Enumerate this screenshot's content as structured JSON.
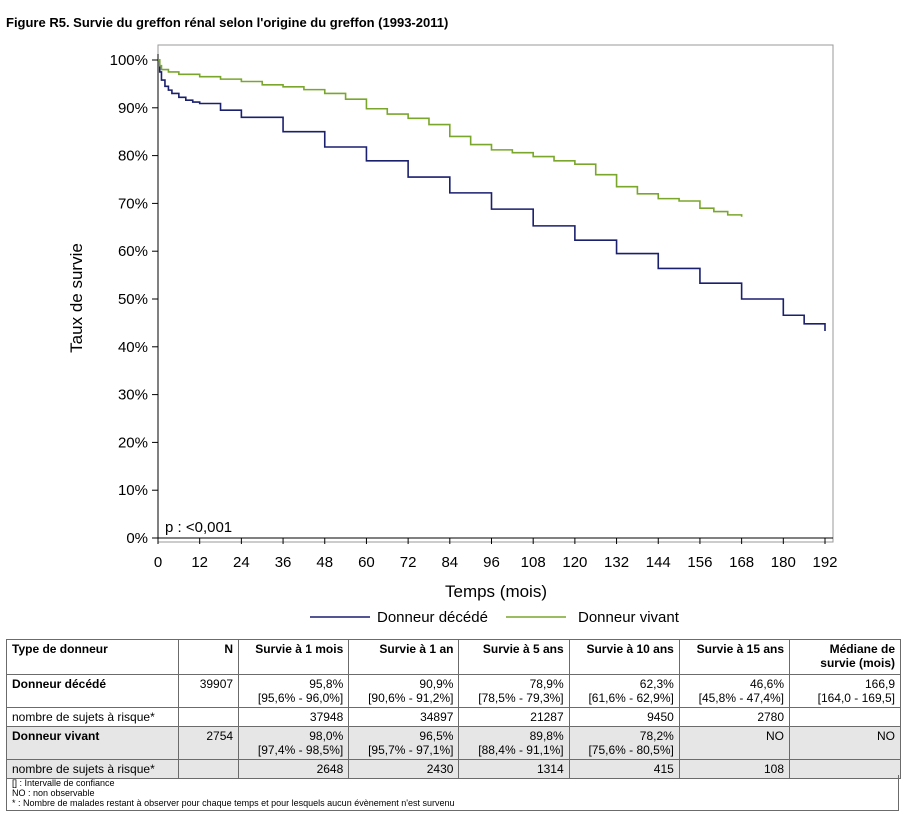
{
  "figure_title": "Figure R5. Survie du greffon rénal selon l'origine du greffon (1993-2011)",
  "chart_data": {
    "type": "line",
    "ylabel": "Taux de survie",
    "xlabel": "Temps (mois)",
    "annotation": "p : <0,001",
    "xlim": [
      0,
      192
    ],
    "ylim": [
      0,
      100
    ],
    "x_ticks": [
      "0",
      "12",
      "24",
      "36",
      "48",
      "60",
      "72",
      "84",
      "96",
      "108",
      "120",
      "132",
      "144",
      "156",
      "168",
      "180",
      "192"
    ],
    "y_ticks": [
      "0%",
      "10%",
      "20%",
      "30%",
      "40%",
      "50%",
      "60%",
      "70%",
      "80%",
      "90%",
      "100%"
    ],
    "legend_position": "bottom",
    "series": [
      {
        "name": "Donneur décédé",
        "color": "#1a1f6e",
        "x": [
          0,
          0.5,
          1,
          2,
          3,
          4,
          6,
          8,
          10,
          12,
          18,
          24,
          36,
          48,
          60,
          72,
          84,
          96,
          108,
          120,
          132,
          144,
          156,
          168,
          180,
          186,
          192
        ],
        "y": [
          100,
          97.5,
          95.8,
          94.5,
          93.7,
          93.0,
          92.2,
          91.6,
          91.2,
          90.9,
          89.5,
          88.0,
          85.0,
          81.8,
          78.9,
          75.5,
          72.2,
          68.8,
          65.3,
          62.3,
          59.5,
          56.4,
          53.3,
          50.0,
          46.6,
          44.8,
          43.3
        ]
      },
      {
        "name": "Donneur vivant",
        "color": "#7aa62c",
        "x": [
          0,
          0.5,
          1,
          3,
          6,
          12,
          18,
          24,
          30,
          36,
          42,
          48,
          54,
          60,
          66,
          72,
          78,
          84,
          90,
          96,
          102,
          108,
          114,
          120,
          126,
          132,
          138,
          144,
          150,
          156,
          160,
          164,
          168
        ],
        "y": [
          100,
          98.8,
          98.0,
          97.5,
          97.0,
          96.5,
          96.0,
          95.5,
          94.8,
          94.4,
          93.8,
          93.0,
          91.8,
          89.8,
          88.7,
          87.8,
          86.5,
          84.0,
          82.3,
          81.2,
          80.6,
          79.8,
          78.9,
          78.2,
          76.0,
          73.5,
          72.0,
          71.0,
          70.5,
          69.0,
          68.3,
          67.6,
          67.2
        ]
      }
    ]
  },
  "table": {
    "headers": [
      "Type de donneur",
      "N",
      "Survie à 1 mois",
      "Survie à 1 an",
      "Survie à 5 ans",
      "Survie à 10 ans",
      "Survie à 15 ans",
      "Médiane de survie (mois)"
    ],
    "rows": [
      {
        "label": "Donneur décédé",
        "n": "39907",
        "cells": [
          [
            "95,8%",
            "[95,6% - 96,0%]"
          ],
          [
            "90,9%",
            "[90,6% - 91,2%]"
          ],
          [
            "78,9%",
            "[78,5% - 79,3%]"
          ],
          [
            "62,3%",
            "[61,6% - 62,9%]"
          ],
          [
            "46,6%",
            "[45,8% - 47,4%]"
          ],
          [
            "166,9",
            "[164,0 - 169,5]"
          ]
        ]
      },
      {
        "label": "nombre de sujets à risque*",
        "n": "",
        "cells": [
          [
            "37948"
          ],
          [
            "34897"
          ],
          [
            "21287"
          ],
          [
            "9450"
          ],
          [
            "2780"
          ],
          [
            ""
          ]
        ]
      },
      {
        "label": "Donneur vivant",
        "n": "2754",
        "cells": [
          [
            "98,0%",
            "[97,4% - 98,5%]"
          ],
          [
            "96,5%",
            "[95,7% - 97,1%]"
          ],
          [
            "89,8%",
            "[88,4% - 91,1%]"
          ],
          [
            "78,2%",
            "[75,6% - 80,5%]"
          ],
          [
            "NO"
          ],
          [
            "NO"
          ]
        ]
      },
      {
        "label": "nombre de sujets à risque*",
        "n": "",
        "cells": [
          [
            "2648"
          ],
          [
            "2430"
          ],
          [
            "1314"
          ],
          [
            "415"
          ],
          [
            "108"
          ],
          [
            ""
          ]
        ]
      }
    ],
    "footnotes": [
      "[] : Intervalle de confiance",
      "NO : non observable",
      "* : Nombre de malades restant à observer pour chaque temps et pour lesquels aucun évènement n'est survenu"
    ]
  }
}
